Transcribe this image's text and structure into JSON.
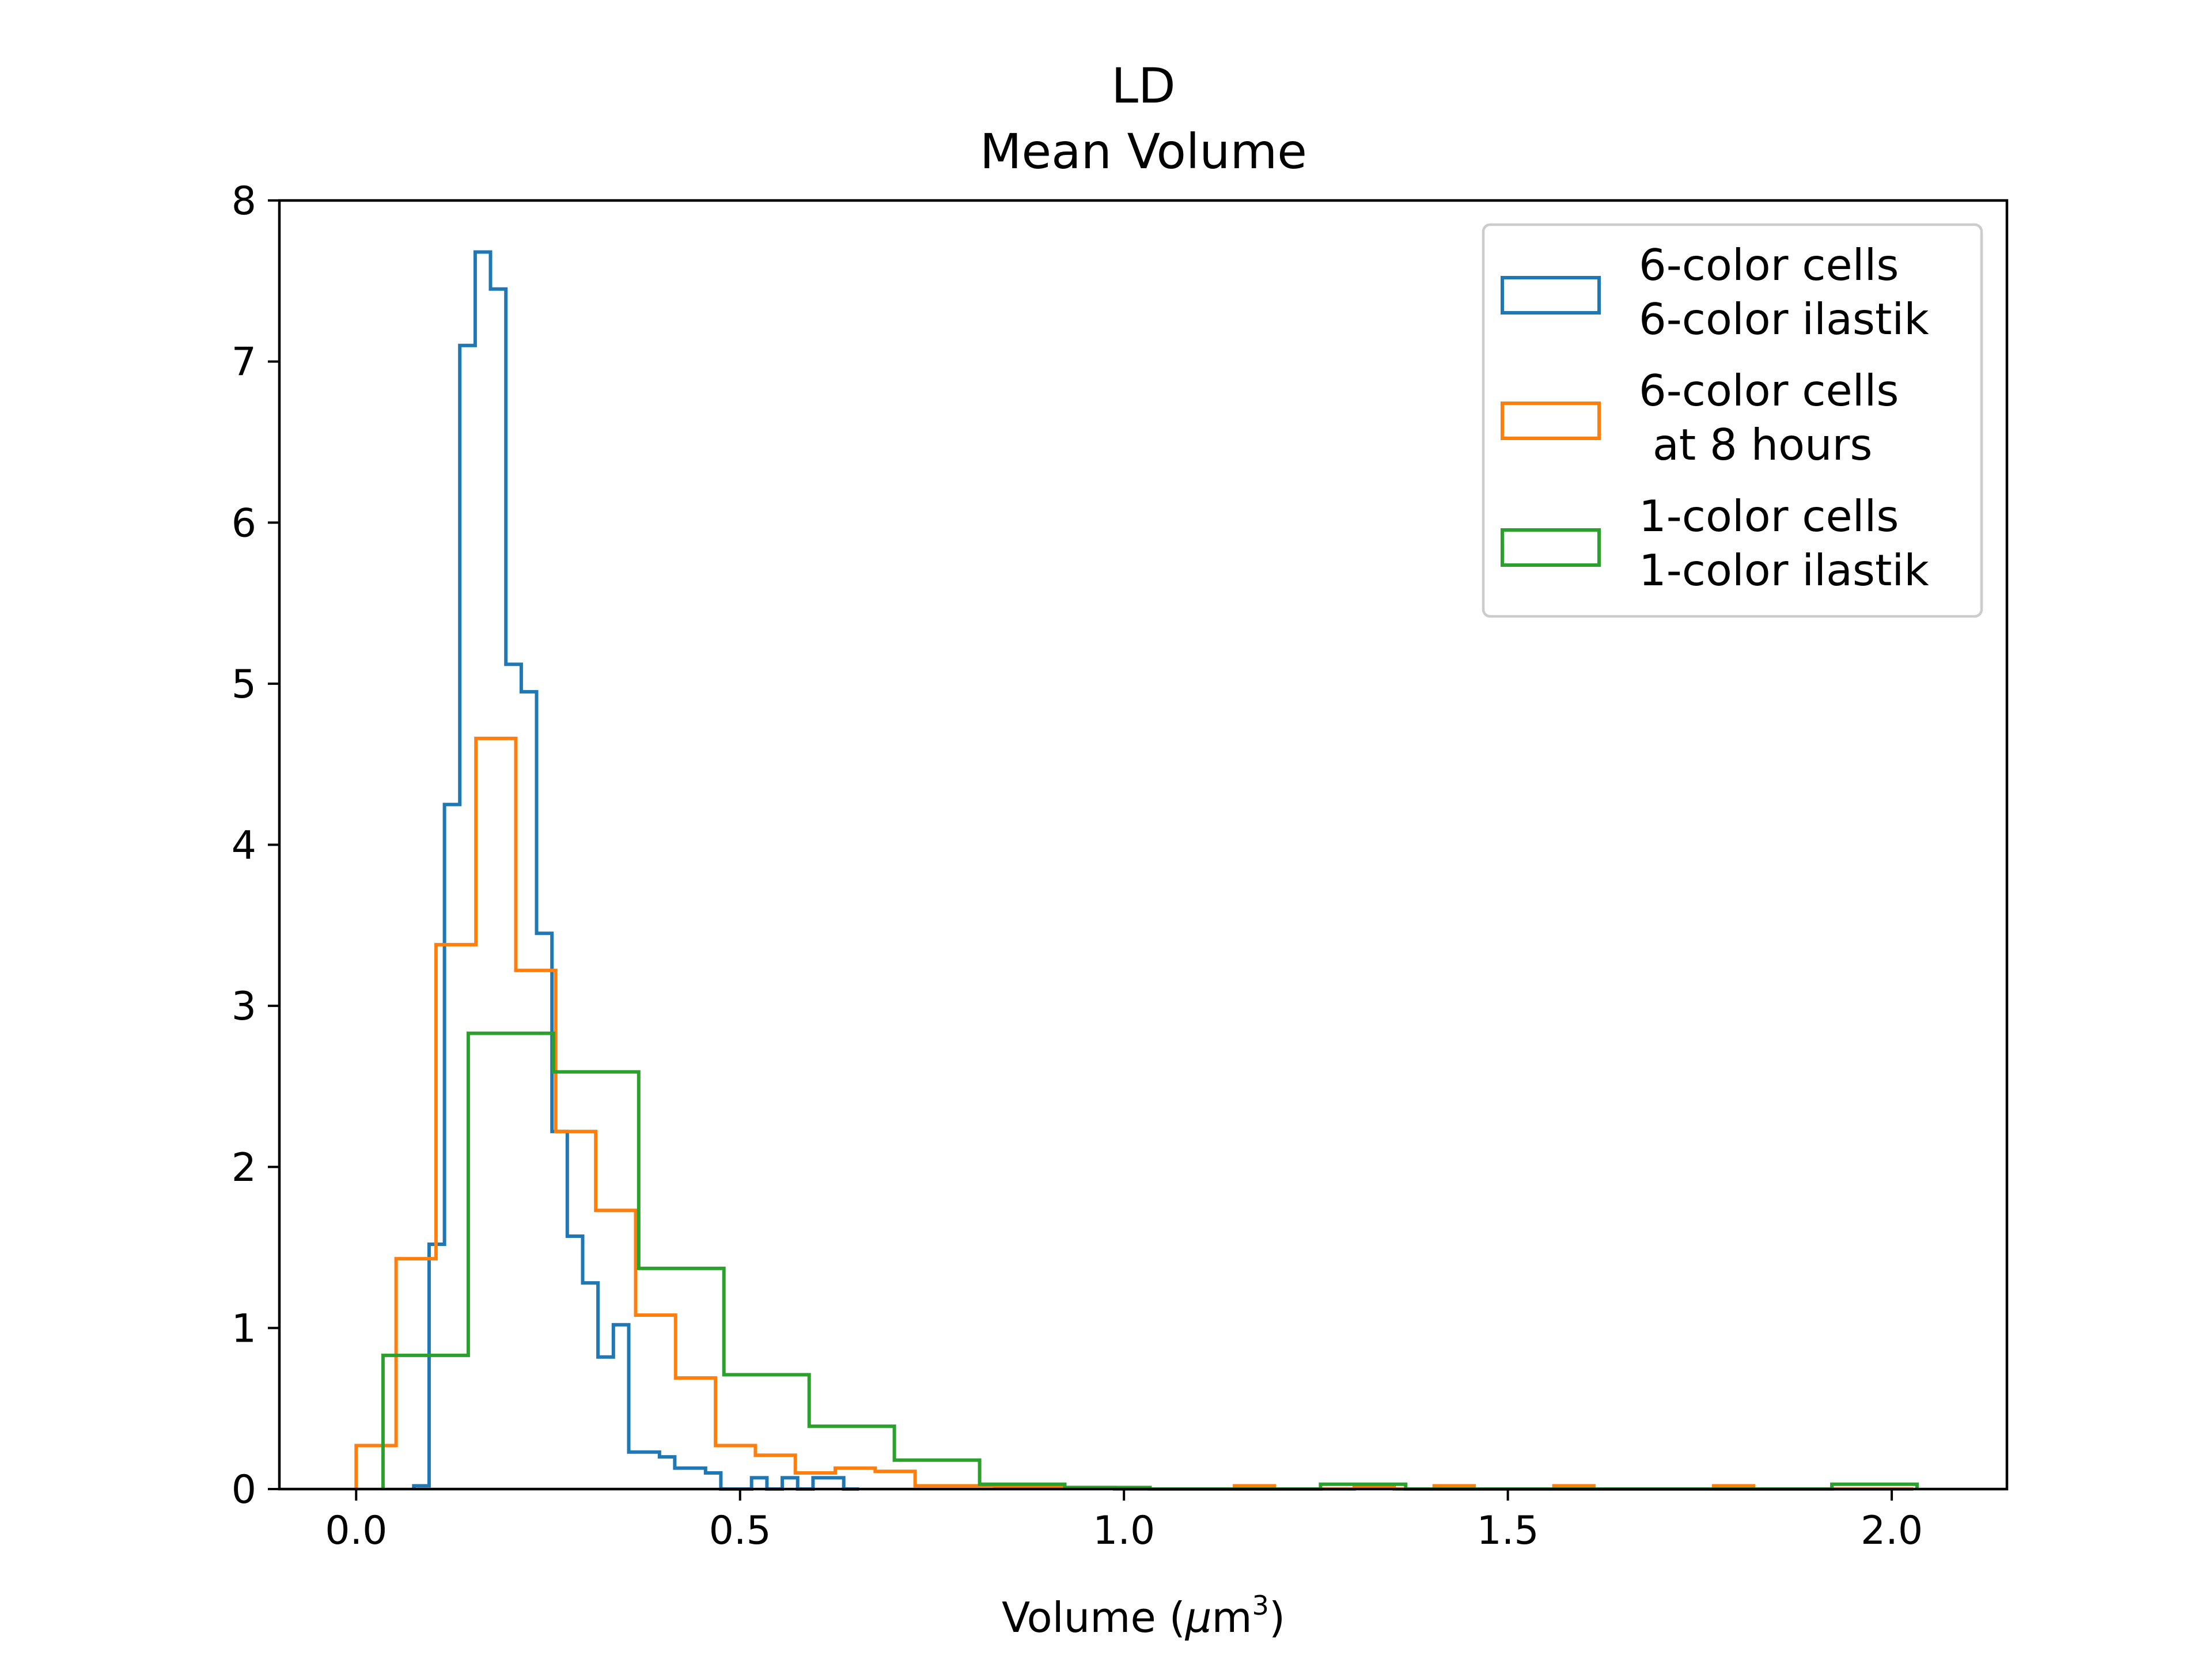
{
  "chart_data": {
    "type": "step-histogram",
    "title_line1": "LD",
    "title_line2": "Mean Volume",
    "xlabel_prefix": "Volume (",
    "xlabel_mu": "μ",
    "xlabel_unit": "m",
    "xlabel_exp": "3",
    "xlabel_suffix": ")",
    "xlim": [
      -0.1,
      2.15
    ],
    "ylim": [
      0,
      8
    ],
    "xticks": [
      0.0,
      0.5,
      1.0,
      1.5,
      2.0
    ],
    "xtick_labels": [
      "0.0",
      "0.5",
      "1.0",
      "1.5",
      "2.0"
    ],
    "yticks": [
      0,
      1,
      2,
      3,
      4,
      5,
      6,
      7,
      8
    ],
    "ytick_labels": [
      "0",
      "1",
      "2",
      "3",
      "4",
      "5",
      "6",
      "7",
      "8"
    ],
    "legend_position": "upper right",
    "series": [
      {
        "name_line1": "6-color cells",
        "name_line2": "6-color ilastik",
        "color": "#1f77b4",
        "edges": [
          0.075,
          0.095,
          0.115,
          0.135,
          0.155,
          0.175,
          0.195,
          0.215,
          0.235,
          0.255,
          0.275,
          0.295,
          0.315,
          0.335,
          0.355,
          0.375,
          0.395,
          0.415,
          0.435,
          0.455,
          0.475,
          0.495,
          0.515,
          0.535,
          0.555,
          0.575,
          0.595,
          0.615,
          0.635,
          0.655
        ],
        "values": [
          0.02,
          1.52,
          4.25,
          7.1,
          7.68,
          7.45,
          5.12,
          4.95,
          3.45,
          2.22,
          1.57,
          1.28,
          0.82,
          1.02,
          0.23,
          0.23,
          0.2,
          0.13,
          0.13,
          0.1,
          0.0,
          0.0,
          0.07,
          0.0,
          0.07,
          0.0,
          0.07,
          0.07,
          0.0
        ]
      },
      {
        "name_line1": "6-color cells",
        "name_line2": " at 8 hours",
        "color": "#ff7f0e",
        "edges": [
          0.0,
          0.052,
          0.104,
          0.156,
          0.208,
          0.26,
          0.312,
          0.364,
          0.416,
          0.468,
          0.52,
          0.572,
          0.624,
          0.676,
          0.728,
          0.78,
          0.832,
          0.884,
          0.936,
          0.988,
          1.04,
          1.092,
          1.144,
          1.196,
          1.248,
          1.3,
          1.352,
          1.404,
          1.456,
          1.508,
          1.56,
          1.612,
          1.664,
          1.716,
          1.768,
          1.82,
          1.872,
          1.924,
          1.976,
          2.028
        ],
        "values": [
          0.27,
          1.43,
          3.38,
          4.66,
          3.22,
          2.22,
          1.73,
          1.08,
          0.69,
          0.27,
          0.21,
          0.1,
          0.13,
          0.11,
          0.02,
          0.02,
          0.01,
          0.01,
          0.01,
          0.0,
          0.0,
          0.0,
          0.02,
          0.0,
          0.0,
          0.01,
          0.0,
          0.02,
          0.0,
          0.0,
          0.02,
          0.0,
          0.0,
          0.0,
          0.02,
          0.0,
          0.0,
          0.0,
          0.0
        ]
      },
      {
        "name_line1": "1-color cells",
        "name_line2": "1-color ilastik",
        "color": "#2ca02c",
        "edges": [
          0.035,
          0.146,
          0.257,
          0.368,
          0.479,
          0.59,
          0.701,
          0.812,
          0.923,
          1.034,
          1.145,
          1.256,
          1.367,
          1.478,
          1.589,
          1.7,
          1.811,
          1.922,
          2.033
        ],
        "values": [
          0.83,
          2.83,
          2.59,
          1.37,
          0.71,
          0.39,
          0.18,
          0.03,
          0.01,
          0.0,
          0.0,
          0.03,
          0.0,
          0.0,
          0.0,
          0.0,
          0.0,
          0.03
        ]
      }
    ]
  }
}
